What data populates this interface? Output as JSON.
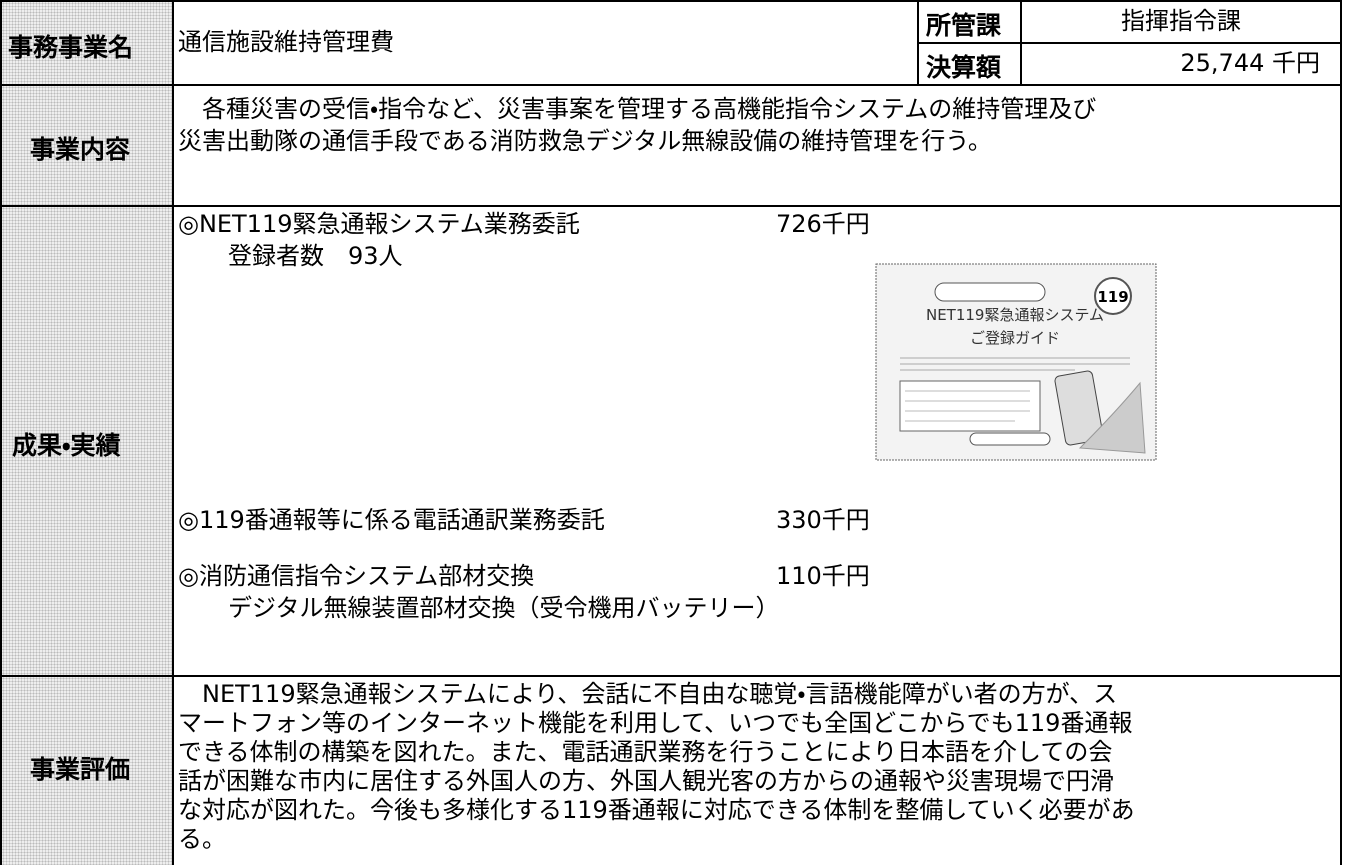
{
  "header": {
    "name_label": "事務事業名",
    "name": "通信施設維持管理費",
    "dept_label": "所管課",
    "dept": "指揮指令課",
    "amount_label": "決算額",
    "amount": "25,744 千円"
  },
  "content": {
    "label": "事業内容",
    "lines": [
      "　各種災害の受信・指令など、災害事案を管理する高機能指令システムの維持管理及び",
      "災害出動隊の通信手段である消防救急デジタル無線設備の維持管理を行う。"
    ]
  },
  "results": {
    "label": "成果・実績",
    "items": [
      {
        "title": "◎NET119緊急通報システム業務委託",
        "amount": "726千円",
        "details": [
          "登録者数　93人"
        ]
      },
      {
        "title": "◎119番通報等に係る電話通訳業務委託",
        "amount": "330千円",
        "details": []
      },
      {
        "title": "◎消防通信指令システム部材交換",
        "amount": "110千円",
        "details": [
          "デジタル無線装置部材交換（受令機用バッテリー）"
        ]
      }
    ],
    "image": {
      "badge": "119",
      "title": "NET119緊急通報システム",
      "subtitle": "ご登録ガイド"
    }
  },
  "evaluation": {
    "label": "事業評価",
    "lines": [
      "　NET119緊急通報システムにより、会話に不自由な聴覚・言語機能障がい者の方が、ス",
      "マートフォン等のインターネット機能を利用して、いつでも全国どこからでも119番通報",
      "できる体制の構築を図れた。また、電話通訳業務を行うことにより日本語を介しての会",
      "話が困難な市内に居住する外国人の方、外国人観光客の方からの通報や災害現場で円滑",
      "な対応が図れた。今後も多様化する119番通報に対応できる体制を整備していく必要があ",
      "る。"
    ]
  }
}
